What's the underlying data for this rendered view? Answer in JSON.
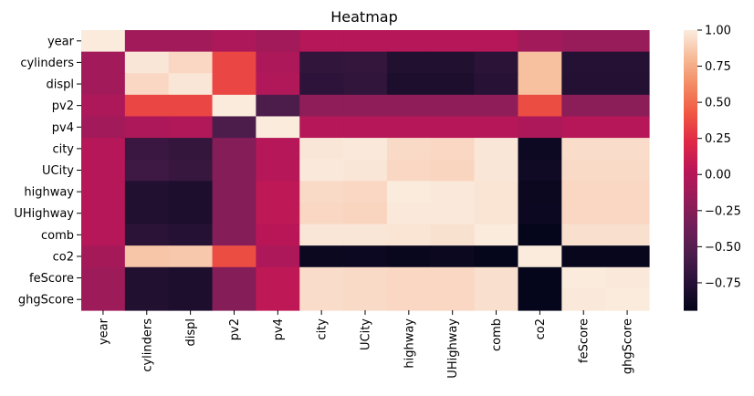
{
  "chart_data": {
    "type": "heatmap",
    "title": "Heatmap",
    "xlabel": "",
    "ylabel": "",
    "x_categories": [
      "year",
      "cylinders",
      "displ",
      "pv2",
      "pv4",
      "city",
      "UCity",
      "highway",
      "UHighway",
      "comb",
      "co2",
      "feScore",
      "ghgScore"
    ],
    "y_categories": [
      "year",
      "cylinders",
      "displ",
      "pv2",
      "pv4",
      "city",
      "UCity",
      "highway",
      "UHighway",
      "comb",
      "co2",
      "feScore",
      "ghgScore"
    ],
    "values": [
      [
        1.0,
        -0.1,
        -0.1,
        -0.05,
        -0.1,
        0.0,
        0.0,
        0.0,
        0.0,
        0.0,
        -0.1,
        -0.15,
        -0.15
      ],
      [
        -0.1,
        0.98,
        0.92,
        0.35,
        -0.05,
        -0.7,
        -0.68,
        -0.78,
        -0.78,
        -0.73,
        0.83,
        -0.76,
        -0.76
      ],
      [
        -0.1,
        0.92,
        0.98,
        0.35,
        -0.02,
        -0.72,
        -0.7,
        -0.8,
        -0.8,
        -0.75,
        0.83,
        -0.77,
        -0.77
      ],
      [
        -0.05,
        0.35,
        0.35,
        1.0,
        -0.55,
        -0.2,
        -0.2,
        -0.2,
        -0.2,
        -0.2,
        0.38,
        -0.22,
        -0.22
      ],
      [
        -0.1,
        -0.05,
        -0.02,
        -0.55,
        1.0,
        0.0,
        0.0,
        0.0,
        0.0,
        0.0,
        -0.05,
        0.0,
        0.0
      ],
      [
        0.0,
        -0.65,
        -0.68,
        -0.25,
        0.0,
        0.98,
        0.99,
        0.93,
        0.92,
        0.98,
        -0.88,
        0.94,
        0.94
      ],
      [
        0.0,
        -0.63,
        -0.66,
        -0.25,
        0.0,
        0.99,
        0.98,
        0.92,
        0.91,
        0.98,
        -0.87,
        0.93,
        0.93
      ],
      [
        0.0,
        -0.78,
        -0.8,
        -0.25,
        0.05,
        0.93,
        0.92,
        1.0,
        0.99,
        0.97,
        -0.9,
        0.92,
        0.92
      ],
      [
        0.0,
        -0.78,
        -0.8,
        -0.25,
        0.05,
        0.92,
        0.91,
        0.99,
        0.99,
        0.97,
        -0.89,
        0.92,
        0.92
      ],
      [
        0.0,
        -0.73,
        -0.76,
        -0.25,
        0.02,
        0.98,
        0.98,
        0.97,
        0.96,
        1.0,
        -0.93,
        0.95,
        0.95
      ],
      [
        -0.08,
        0.85,
        0.86,
        0.38,
        -0.05,
        -0.9,
        -0.89,
        -0.91,
        -0.9,
        -0.93,
        1.0,
        -0.92,
        -0.92
      ],
      [
        -0.12,
        -0.78,
        -0.8,
        -0.25,
        0.05,
        0.94,
        0.93,
        0.92,
        0.92,
        0.95,
        -0.93,
        1.0,
        0.99
      ],
      [
        -0.12,
        -0.78,
        -0.8,
        -0.25,
        0.05,
        0.94,
        0.93,
        0.92,
        0.92,
        0.95,
        -0.93,
        0.99,
        1.0
      ]
    ],
    "colorbar": {
      "range": [
        -0.94,
        1.0
      ],
      "ticks": [
        1.0,
        0.75,
        0.5,
        0.25,
        0.0,
        -0.25,
        -0.5,
        -0.75
      ],
      "tick_labels": [
        "1.00",
        "0.75",
        "0.50",
        "0.25",
        "0.00",
        "−0.25",
        "−0.50",
        "−0.75"
      ]
    },
    "colormap": "rocket",
    "grid": false,
    "legend": "colorbar-right"
  }
}
